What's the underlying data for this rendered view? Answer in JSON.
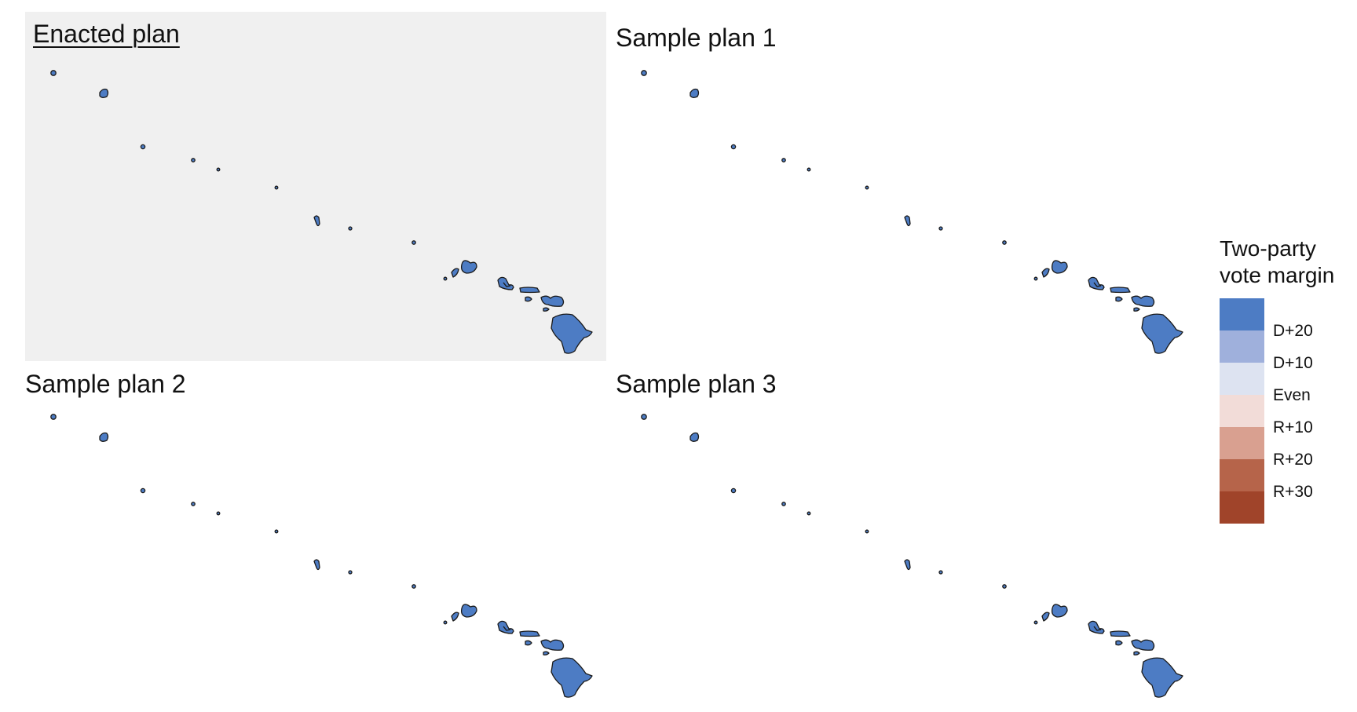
{
  "panels": [
    {
      "id": "enacted",
      "title": "Enacted plan",
      "highlighted": true,
      "fill": "#4d7cc4"
    },
    {
      "id": "sample1",
      "title": "Sample plan 1",
      "highlighted": false,
      "fill": "#4d7cc4"
    },
    {
      "id": "sample2",
      "title": "Sample plan 2",
      "highlighted": false,
      "fill": "#4d7cc4"
    },
    {
      "id": "sample3",
      "title": "Sample plan 3",
      "highlighted": false,
      "fill": "#4d7cc4"
    }
  ],
  "legend": {
    "title_line1": "Two-party",
    "title_line2": "vote margin",
    "swatches": [
      "#4d7cc4",
      "#9fb0dc",
      "#dde3f1",
      "#f2dcd8",
      "#d9a090",
      "#b6644a",
      "#a0442a"
    ],
    "labels": [
      "D+20",
      "D+10",
      "Even",
      "R+10",
      "R+20",
      "R+30"
    ]
  },
  "colors": {
    "highlight_bg": "#f0f0f0",
    "outline": "#1a1a1a"
  }
}
